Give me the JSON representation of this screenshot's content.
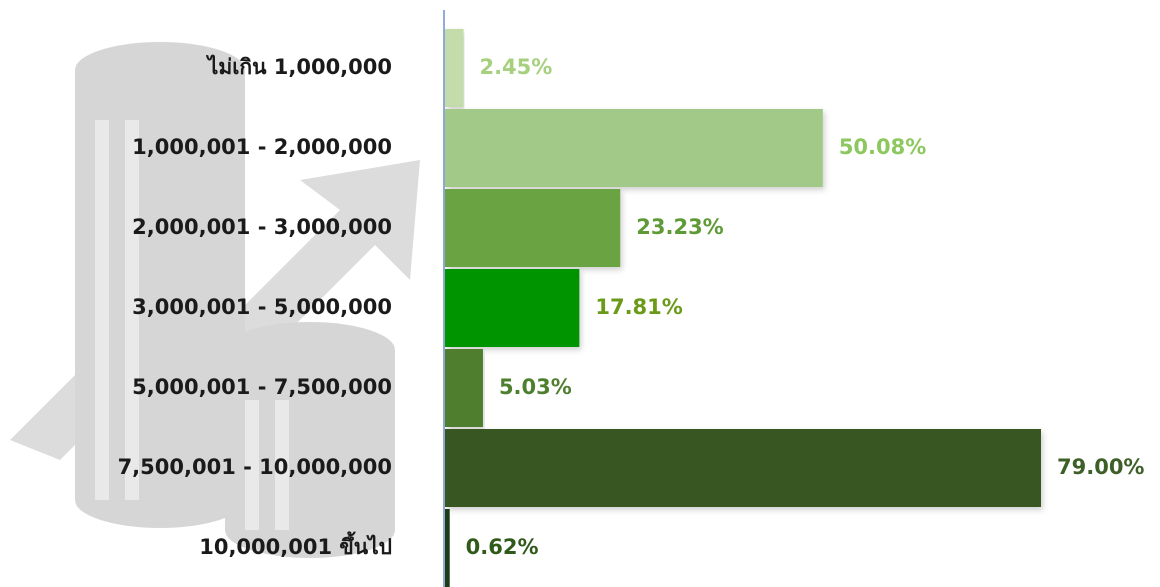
{
  "chart_data": {
    "type": "barh",
    "categories": [
      "ไม่เกิน 1,000,000",
      "1,000,001 - 2,000,000",
      "2,000,001 - 3,000,000",
      "3,000,001 - 5,000,000",
      "5,000,001 - 7,500,000",
      "7,500,001 - 10,000,000",
      "10,000,001 ขึ้นไป"
    ],
    "values": [
      2.45,
      50.08,
      23.23,
      17.81,
      5.03,
      79.0,
      0.62
    ],
    "value_labels": [
      "2.45%",
      "50.08%",
      "23.23%",
      "17.81%",
      "5.03%",
      "79.00%",
      "0.62%"
    ],
    "colors": [
      "#c3dcaa",
      "#a2c987",
      "#6aa443",
      "#009400",
      "#4f7f2f",
      "#375623",
      "#1e3a14"
    ],
    "label_colors": [
      "#a6d07e",
      "#8cc85f",
      "#5e9a35",
      "#6a9a18",
      "#4e7f2e",
      "#3d5f28",
      "#2f5a1a"
    ]
  }
}
